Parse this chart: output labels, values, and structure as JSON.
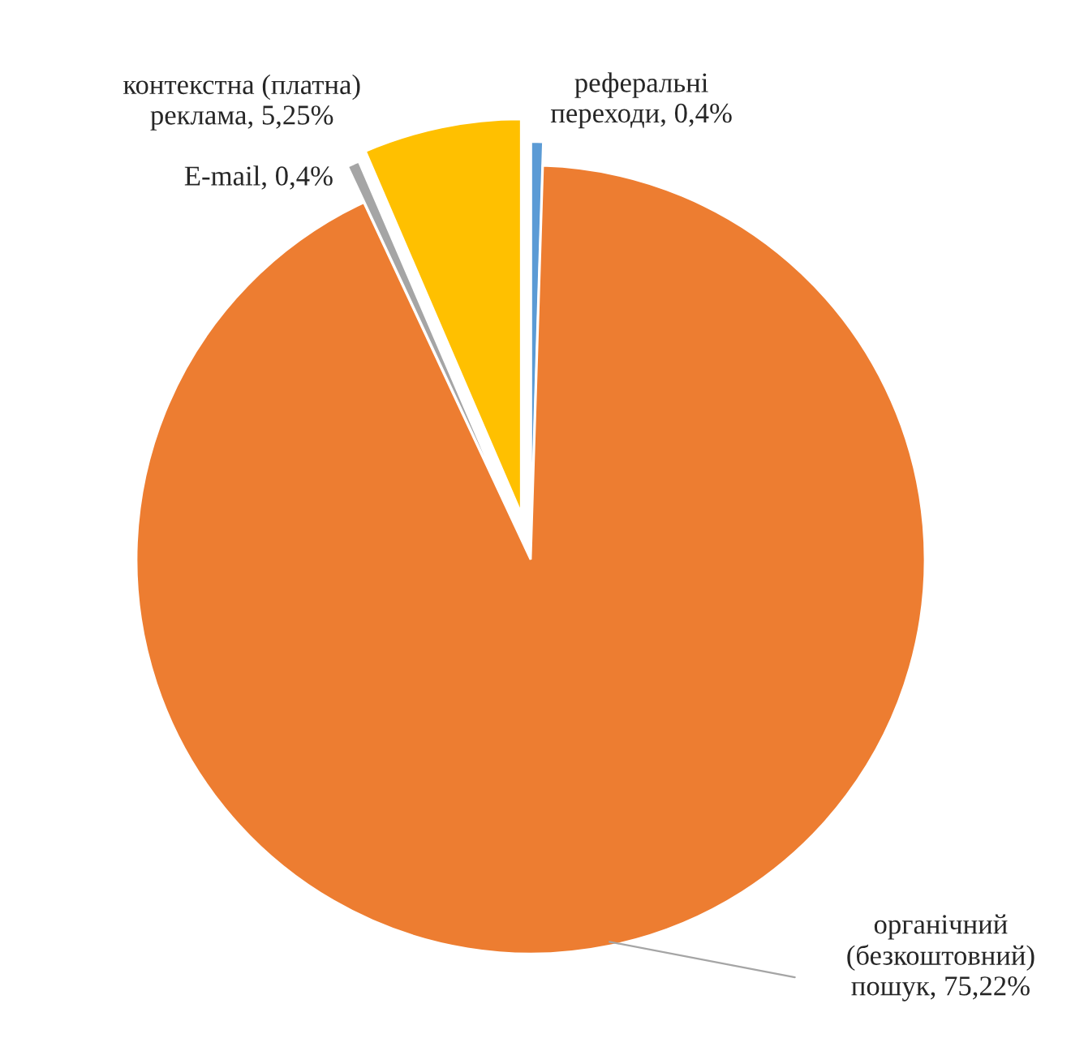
{
  "chart_data": {
    "type": "pie",
    "categories": [
      "реферальні переходи",
      "органічний (безкоштовний) пошук",
      "E-mail",
      "контекстна (платна) реклама"
    ],
    "values": [
      0.4,
      75.22,
      0.4,
      5.25
    ],
    "value_labels": [
      "0,4%",
      "75,22%",
      "0,4%",
      "5,25%"
    ],
    "colors": [
      "#5b9bd5",
      "#ed7d31",
      "#a5a5a5",
      "#ffc000"
    ],
    "legend": false
  }
}
